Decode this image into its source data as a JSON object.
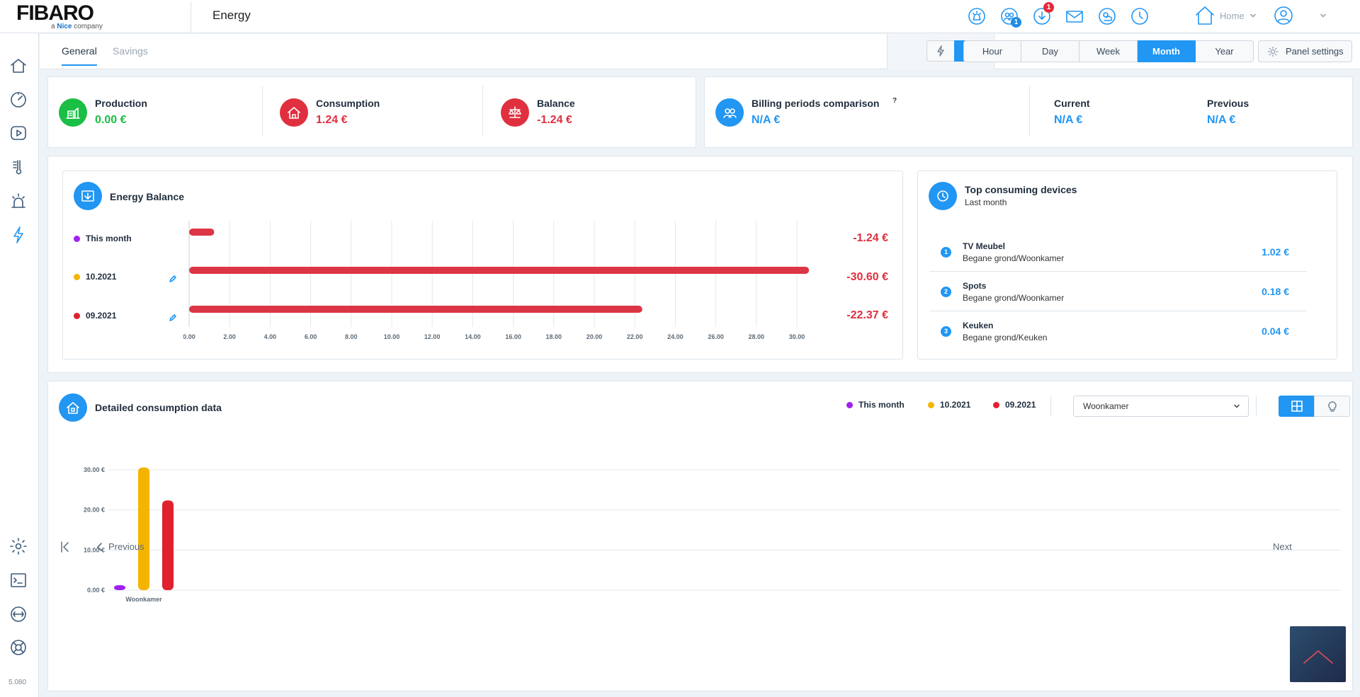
{
  "brand": {
    "logo_main": "FIBARO",
    "logo_sub_prefix": "a ",
    "logo_sub_brand": "Nice",
    "logo_sub_suffix": " company"
  },
  "header": {
    "title": "Energy",
    "badges": {
      "users": "1",
      "downloads": "1"
    },
    "home_label": "Home"
  },
  "sidebar": {
    "version": "5.080"
  },
  "tabs": {
    "general": "General",
    "savings": "Savings"
  },
  "mode": {
    "money_symbol": "$"
  },
  "periods": {
    "hour": "Hour",
    "day": "Day",
    "week": "Week",
    "month": "Month",
    "year": "Year",
    "active": "Month"
  },
  "panel_settings_label": "Panel settings",
  "summary": {
    "production": {
      "label": "Production",
      "value": "0.00 €"
    },
    "consumption": {
      "label": "Consumption",
      "value": "1.24 €"
    },
    "balance": {
      "label": "Balance",
      "value": "-1.24 €"
    }
  },
  "billing": {
    "title": "Billing periods comparison",
    "help": "?",
    "value": "N/A €",
    "current_label": "Current",
    "current_value": "N/A €",
    "previous_label": "Previous",
    "previous_value": "N/A €"
  },
  "energy_balance": {
    "title": "Energy Balance",
    "rows": [
      {
        "label": "This month",
        "dot": "#a020f0",
        "value": "-1.24 €"
      },
      {
        "label": "10.2021",
        "dot": "#f5b400",
        "value": "-30.60 €"
      },
      {
        "label": "09.2021",
        "dot": "#e0202e",
        "value": "-22.37 €"
      }
    ]
  },
  "chart_data": [
    {
      "type": "bar",
      "orientation": "horizontal",
      "categories": [
        "This month",
        "10.2021",
        "09.2021"
      ],
      "values": [
        1.24,
        30.6,
        22.37
      ],
      "xlim": [
        0,
        30
      ],
      "xticks": [
        "0.00",
        "2.00",
        "4.00",
        "6.00",
        "8.00",
        "10.00",
        "12.00",
        "14.00",
        "16.00",
        "18.00",
        "20.00",
        "22.00",
        "24.00",
        "26.00",
        "28.00",
        "30.00"
      ],
      "bar_color": "#dc3545",
      "grid": true
    },
    {
      "type": "bar",
      "categories": [
        "Woonkamer"
      ],
      "series": [
        {
          "name": "This month",
          "color": "#a020f0",
          "values": [
            1.24
          ]
        },
        {
          "name": "10.2021",
          "color": "#f5b400",
          "values": [
            30.6
          ]
        },
        {
          "name": "09.2021",
          "color": "#e0202e",
          "values": [
            22.37
          ]
        }
      ],
      "ylim": [
        0,
        30
      ],
      "yticks": [
        "0.00 €",
        "10.00 €",
        "20.00 €",
        "30.00 €"
      ],
      "grid": true
    }
  ],
  "top_devices": {
    "title": "Top consuming devices",
    "subtitle": "Last month",
    "items": [
      {
        "num": "1",
        "name": "TV Meubel",
        "room": "Begane grond/Woonkamer",
        "value": "1.02 €"
      },
      {
        "num": "2",
        "name": "Spots",
        "room": "Begane grond/Woonkamer",
        "value": "0.18 €"
      },
      {
        "num": "3",
        "name": "Keuken",
        "room": "Begane grond/Keuken",
        "value": "0.04 €"
      }
    ]
  },
  "detailed": {
    "title": "Detailed consumption data",
    "legend": [
      "This month",
      "10.2021",
      "09.2021"
    ],
    "room_select": "Woonkamer",
    "previous": "Previous",
    "next": "Next"
  }
}
